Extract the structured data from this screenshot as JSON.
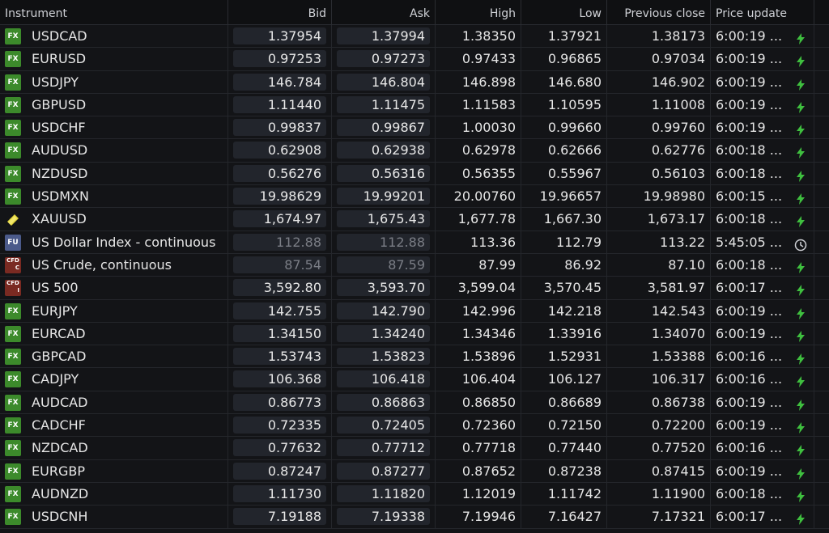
{
  "headers": {
    "instrument": "Instrument",
    "bid": "Bid",
    "ask": "Ask",
    "high": "High",
    "low": "Low",
    "prev": "Previous close",
    "update": "Price update"
  },
  "colors": {
    "fx": "#3c8a2b",
    "fu": "#4b5a8a",
    "cfd": "#7a2a22",
    "lightning": "#3fbf3f"
  },
  "rows": [
    {
      "badge": "FX",
      "instrument": "USDCAD",
      "bid": "1.37954",
      "ask": "1.37994",
      "high": "1.38350",
      "low": "1.37921",
      "prev": "1.38173",
      "update": "6:00:19 ...",
      "icon": "lightning-icon"
    },
    {
      "badge": "FX",
      "instrument": "EURUSD",
      "bid": "0.97253",
      "ask": "0.97273",
      "high": "0.97433",
      "low": "0.96865",
      "prev": "0.97034",
      "update": "6:00:19 ...",
      "icon": "lightning-icon"
    },
    {
      "badge": "FX",
      "instrument": "USDJPY",
      "bid": "146.784",
      "ask": "146.804",
      "high": "146.898",
      "low": "146.680",
      "prev": "146.902",
      "update": "6:00:19 ...",
      "icon": "lightning-icon"
    },
    {
      "badge": "FX",
      "instrument": "GBPUSD",
      "bid": "1.11440",
      "ask": "1.11475",
      "high": "1.11583",
      "low": "1.10595",
      "prev": "1.11008",
      "update": "6:00:19 ...",
      "icon": "lightning-icon"
    },
    {
      "badge": "FX",
      "instrument": "USDCHF",
      "bid": "0.99837",
      "ask": "0.99867",
      "high": "1.00030",
      "low": "0.99660",
      "prev": "0.99760",
      "update": "6:00:19 ...",
      "icon": "lightning-icon"
    },
    {
      "badge": "FX",
      "instrument": "AUDUSD",
      "bid": "0.62908",
      "ask": "0.62938",
      "high": "0.62978",
      "low": "0.62666",
      "prev": "0.62776",
      "update": "6:00:18 ...",
      "icon": "lightning-icon"
    },
    {
      "badge": "FX",
      "instrument": "NZDUSD",
      "bid": "0.56276",
      "ask": "0.56316",
      "high": "0.56355",
      "low": "0.55967",
      "prev": "0.56103",
      "update": "6:00:18 ...",
      "icon": "lightning-icon"
    },
    {
      "badge": "FX",
      "instrument": "USDMXN",
      "bid": "19.98629",
      "ask": "19.99201",
      "high": "20.00760",
      "low": "19.96657",
      "prev": "19.98980",
      "update": "6:00:15 ...",
      "icon": "lightning-icon"
    },
    {
      "badge": "GOLD",
      "instrument": "XAUUSD",
      "bid": "1,674.97",
      "ask": "1,675.43",
      "high": "1,677.78",
      "low": "1,667.30",
      "prev": "1,673.17",
      "update": "6:00:18 ...",
      "icon": "lightning-icon"
    },
    {
      "badge": "FU",
      "instrument": "US Dollar Index - continuous",
      "bid": "112.88",
      "ask": "112.88",
      "high": "113.36",
      "low": "112.79",
      "prev": "113.22",
      "update": "5:45:05 ...",
      "icon": "clock-icon",
      "muted": true
    },
    {
      "badge": "CFD",
      "badge_sub": "C",
      "instrument": "US Crude, continuous",
      "bid": "87.54",
      "ask": "87.59",
      "high": "87.99",
      "low": "86.92",
      "prev": "87.10",
      "update": "6:00:18 ...",
      "icon": "lightning-icon",
      "muted": true
    },
    {
      "badge": "CFD",
      "badge_sub": "I",
      "instrument": "US 500",
      "bid": "3,592.80",
      "ask": "3,593.70",
      "high": "3,599.04",
      "low": "3,570.45",
      "prev": "3,581.97",
      "update": "6:00:17 ...",
      "icon": "lightning-icon"
    },
    {
      "badge": "FX",
      "instrument": "EURJPY",
      "bid": "142.755",
      "ask": "142.790",
      "high": "142.996",
      "low": "142.218",
      "prev": "142.543",
      "update": "6:00:19 ...",
      "icon": "lightning-icon"
    },
    {
      "badge": "FX",
      "instrument": "EURCAD",
      "bid": "1.34150",
      "ask": "1.34240",
      "high": "1.34346",
      "low": "1.33916",
      "prev": "1.34070",
      "update": "6:00:19 ...",
      "icon": "lightning-icon"
    },
    {
      "badge": "FX",
      "instrument": "GBPCAD",
      "bid": "1.53743",
      "ask": "1.53823",
      "high": "1.53896",
      "low": "1.52931",
      "prev": "1.53388",
      "update": "6:00:16 ...",
      "icon": "lightning-icon"
    },
    {
      "badge": "FX",
      "instrument": "CADJPY",
      "bid": "106.368",
      "ask": "106.418",
      "high": "106.404",
      "low": "106.127",
      "prev": "106.317",
      "update": "6:00:16 ...",
      "icon": "lightning-icon"
    },
    {
      "badge": "FX",
      "instrument": "AUDCAD",
      "bid": "0.86773",
      "ask": "0.86863",
      "high": "0.86850",
      "low": "0.86689",
      "prev": "0.86738",
      "update": "6:00:19 ...",
      "icon": "lightning-icon"
    },
    {
      "badge": "FX",
      "instrument": "CADCHF",
      "bid": "0.72335",
      "ask": "0.72405",
      "high": "0.72360",
      "low": "0.72150",
      "prev": "0.72200",
      "update": "6:00:19 ...",
      "icon": "lightning-icon"
    },
    {
      "badge": "FX",
      "instrument": "NZDCAD",
      "bid": "0.77632",
      "ask": "0.77712",
      "high": "0.77718",
      "low": "0.77440",
      "prev": "0.77520",
      "update": "6:00:16 ...",
      "icon": "lightning-icon"
    },
    {
      "badge": "FX",
      "instrument": "EURGBP",
      "bid": "0.87247",
      "ask": "0.87277",
      "high": "0.87652",
      "low": "0.87238",
      "prev": "0.87415",
      "update": "6:00:19 ...",
      "icon": "lightning-icon"
    },
    {
      "badge": "FX",
      "instrument": "AUDNZD",
      "bid": "1.11730",
      "ask": "1.11820",
      "high": "1.12019",
      "low": "1.11742",
      "prev": "1.11900",
      "update": "6:00:18 ...",
      "icon": "lightning-icon"
    },
    {
      "badge": "FX",
      "instrument": "USDCNH",
      "bid": "7.19188",
      "ask": "7.19338",
      "high": "7.19946",
      "low": "7.16427",
      "prev": "7.17321",
      "update": "6:00:17 ...",
      "icon": "lightning-icon"
    }
  ]
}
